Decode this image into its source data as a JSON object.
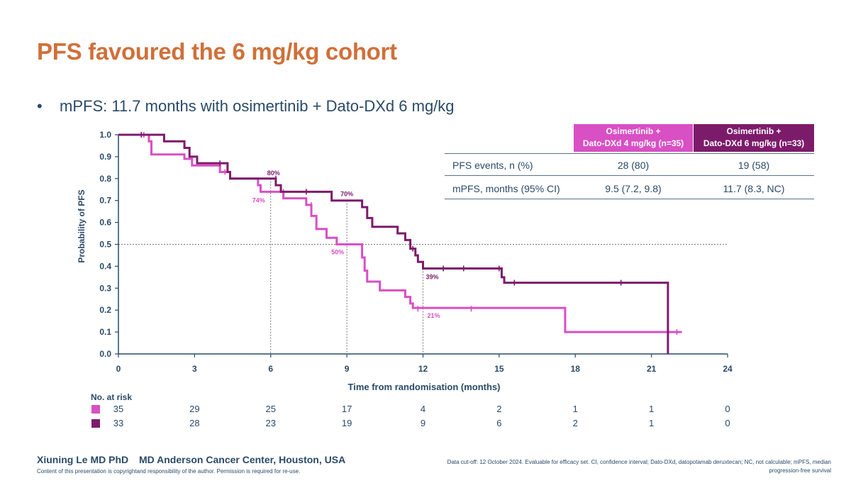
{
  "title": "PFS favoured the 6 mg/kg cohort",
  "bullet": {
    "marker": "•",
    "text": "mPFS: 11.7 months with osimertinib + Dato-DXd 6 mg/kg"
  },
  "colors": {
    "title": "#d0703a",
    "text": "#2a4a68",
    "dose4": "#d94fc4",
    "dose6": "#7d1b6b"
  },
  "table": {
    "headers": [
      {
        "line1": "Osimertinib +",
        "line2": "Dato-DXd 4 mg/kg (n=35)"
      },
      {
        "line1": "Osimertinib +",
        "line2": "Dato-DXd 6 mg/kg (n=33)"
      }
    ],
    "rows": [
      {
        "label": "PFS events, n (%)",
        "v4": "28 (80)",
        "v6": "19 (58)"
      },
      {
        "label": "mPFS, months (95% CI)",
        "v4": "9.5 (7.2, 9.8)",
        "v6": "11.7 (8.3, NC)"
      }
    ]
  },
  "chart_data": {
    "type": "line",
    "subtype": "kaplan-meier step curve",
    "xlabel": "Time from randomisation (months)",
    "ylabel": "Probability of PFS",
    "xlim": [
      0,
      24
    ],
    "ylim": [
      0,
      1.0
    ],
    "xticks": [
      "0",
      "3",
      "6",
      "9",
      "12",
      "15",
      "18",
      "21",
      "24"
    ],
    "yticks": [
      "0.0",
      "0.1",
      "0.2",
      "0.3",
      "0.4",
      "0.5",
      "0.6",
      "0.7",
      "0.8",
      "0.9",
      "1.0"
    ],
    "grid": false,
    "median_reference_line": 0.5,
    "series": [
      {
        "key": "dose4",
        "color": "#d94fc4",
        "steps": [
          [
            0,
            1.0
          ],
          [
            1.2,
            0.97
          ],
          [
            1.3,
            0.91
          ],
          [
            2.6,
            0.89
          ],
          [
            2.9,
            0.86
          ],
          [
            4.0,
            0.83
          ],
          [
            4.4,
            0.8
          ],
          [
            5.5,
            0.77
          ],
          [
            5.6,
            0.74
          ],
          [
            6.5,
            0.71
          ],
          [
            7.4,
            0.68
          ],
          [
            7.6,
            0.63
          ],
          [
            7.8,
            0.57
          ],
          [
            8.2,
            0.53
          ],
          [
            8.6,
            0.5
          ],
          [
            9.4,
            0.5
          ],
          [
            9.6,
            0.44
          ],
          [
            9.7,
            0.38
          ],
          [
            9.8,
            0.33
          ],
          [
            10.3,
            0.29
          ],
          [
            11.3,
            0.26
          ],
          [
            11.5,
            0.23
          ],
          [
            11.6,
            0.21
          ],
          [
            17.5,
            0.21
          ],
          [
            17.6,
            0.1
          ],
          [
            22.2,
            0.1
          ]
        ],
        "censors": [
          [
            1.0,
            1.0
          ],
          [
            4.2,
            0.83
          ],
          [
            6.5,
            0.74
          ],
          [
            7.6,
            0.68
          ],
          [
            11.8,
            0.206
          ],
          [
            13.9,
            0.206
          ],
          [
            22.0,
            0.1
          ]
        ],
        "annotations": [
          {
            "x": 6,
            "y": 0.74,
            "label": "74%"
          },
          {
            "x": 9,
            "y": 0.5,
            "label": "50%"
          },
          {
            "x": 12,
            "y": 0.21,
            "label": "21%"
          }
        ]
      },
      {
        "key": "dose6",
        "color": "#7d1b6b",
        "steps": [
          [
            0,
            1.0
          ],
          [
            1.8,
            0.97
          ],
          [
            2.6,
            0.94
          ],
          [
            2.8,
            0.9
          ],
          [
            3.1,
            0.87
          ],
          [
            4.3,
            0.83
          ],
          [
            4.4,
            0.8
          ],
          [
            6.2,
            0.77
          ],
          [
            6.4,
            0.74
          ],
          [
            8.4,
            0.7
          ],
          [
            9.5,
            0.7
          ],
          [
            9.6,
            0.67
          ],
          [
            9.8,
            0.62
          ],
          [
            10.0,
            0.58
          ],
          [
            11.0,
            0.55
          ],
          [
            11.3,
            0.52
          ],
          [
            11.5,
            0.48
          ],
          [
            11.7,
            0.45
          ],
          [
            11.8,
            0.42
          ],
          [
            12.0,
            0.39
          ],
          [
            15.1,
            0.35
          ],
          [
            15.2,
            0.325
          ],
          [
            21.6,
            0.325
          ],
          [
            21.65,
            0.0
          ]
        ],
        "censors": [
          [
            0.9,
            1.0
          ],
          [
            4.0,
            0.87
          ],
          [
            6.2,
            0.8
          ],
          [
            7.4,
            0.74
          ],
          [
            11.6,
            0.48
          ],
          [
            12.8,
            0.39
          ],
          [
            13.6,
            0.39
          ],
          [
            15.0,
            0.39
          ],
          [
            15.6,
            0.325
          ],
          [
            19.8,
            0.325
          ]
        ],
        "annotations": [
          {
            "x": 6,
            "y": 0.8,
            "label": "80%"
          },
          {
            "x": 9,
            "y": 0.7,
            "label": "70%"
          },
          {
            "x": 12,
            "y": 0.39,
            "label": "39%"
          }
        ]
      }
    ],
    "number_at_risk": {
      "title": "No. at risk",
      "times": [
        0,
        3,
        6,
        9,
        12,
        15,
        18,
        21,
        24
      ],
      "rows": [
        {
          "key": "dose4",
          "color": "#d94fc4",
          "values": [
            "35",
            "29",
            "25",
            "17",
            "4",
            "2",
            "1",
            "1",
            "0"
          ]
        },
        {
          "key": "dose6",
          "color": "#7d1b6b",
          "values": [
            "33",
            "28",
            "23",
            "19",
            "9",
            "6",
            "2",
            "1",
            "0"
          ]
        }
      ]
    }
  },
  "footer": {
    "presenter": "Xiuning Le MD PhD",
    "institution": "MD Anderson Cancer Center, Houston, USA",
    "copyright": "Content of this presentation is copyrightand responsibility of the author. Permission is required for re-use.",
    "note": "Data cut-off: 12 October 2024. Evaluable for efficacy set. CI, confidence interval; Dato-DXd, datopotamab deruxtecan; NC, not calculable; mPFS, median progression-free survival"
  }
}
